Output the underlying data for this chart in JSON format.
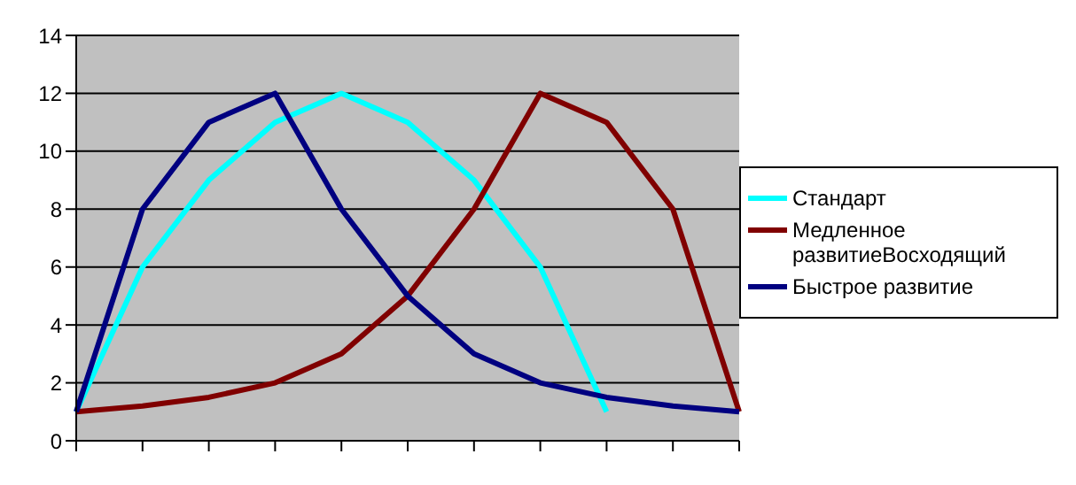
{
  "chart_data": {
    "type": "line",
    "categories": [
      null,
      null,
      null,
      null,
      null,
      null,
      null,
      null,
      null,
      null,
      null
    ],
    "series": [
      {
        "name": "Стандарт",
        "color": "#00ffff",
        "values": [
          1,
          6,
          9,
          11,
          12,
          11,
          9,
          6,
          1,
          null,
          null
        ]
      },
      {
        "name": "Медленное развитиеВосходящий",
        "color": "#800000",
        "values": [
          1,
          1.2,
          1.5,
          2,
          3,
          5,
          8,
          12,
          11,
          8,
          1
        ]
      },
      {
        "name": "Быстрое развитие",
        "color": "#000080",
        "values": [
          1,
          8,
          11,
          12,
          8,
          5,
          3,
          2,
          1.5,
          1.2,
          1
        ]
      }
    ],
    "ylim": [
      0,
      14
    ],
    "yticks": [
      0,
      2,
      4,
      6,
      8,
      10,
      12,
      14
    ],
    "grid": "y",
    "legend": "right",
    "marker": "none",
    "line_style": "solid"
  }
}
